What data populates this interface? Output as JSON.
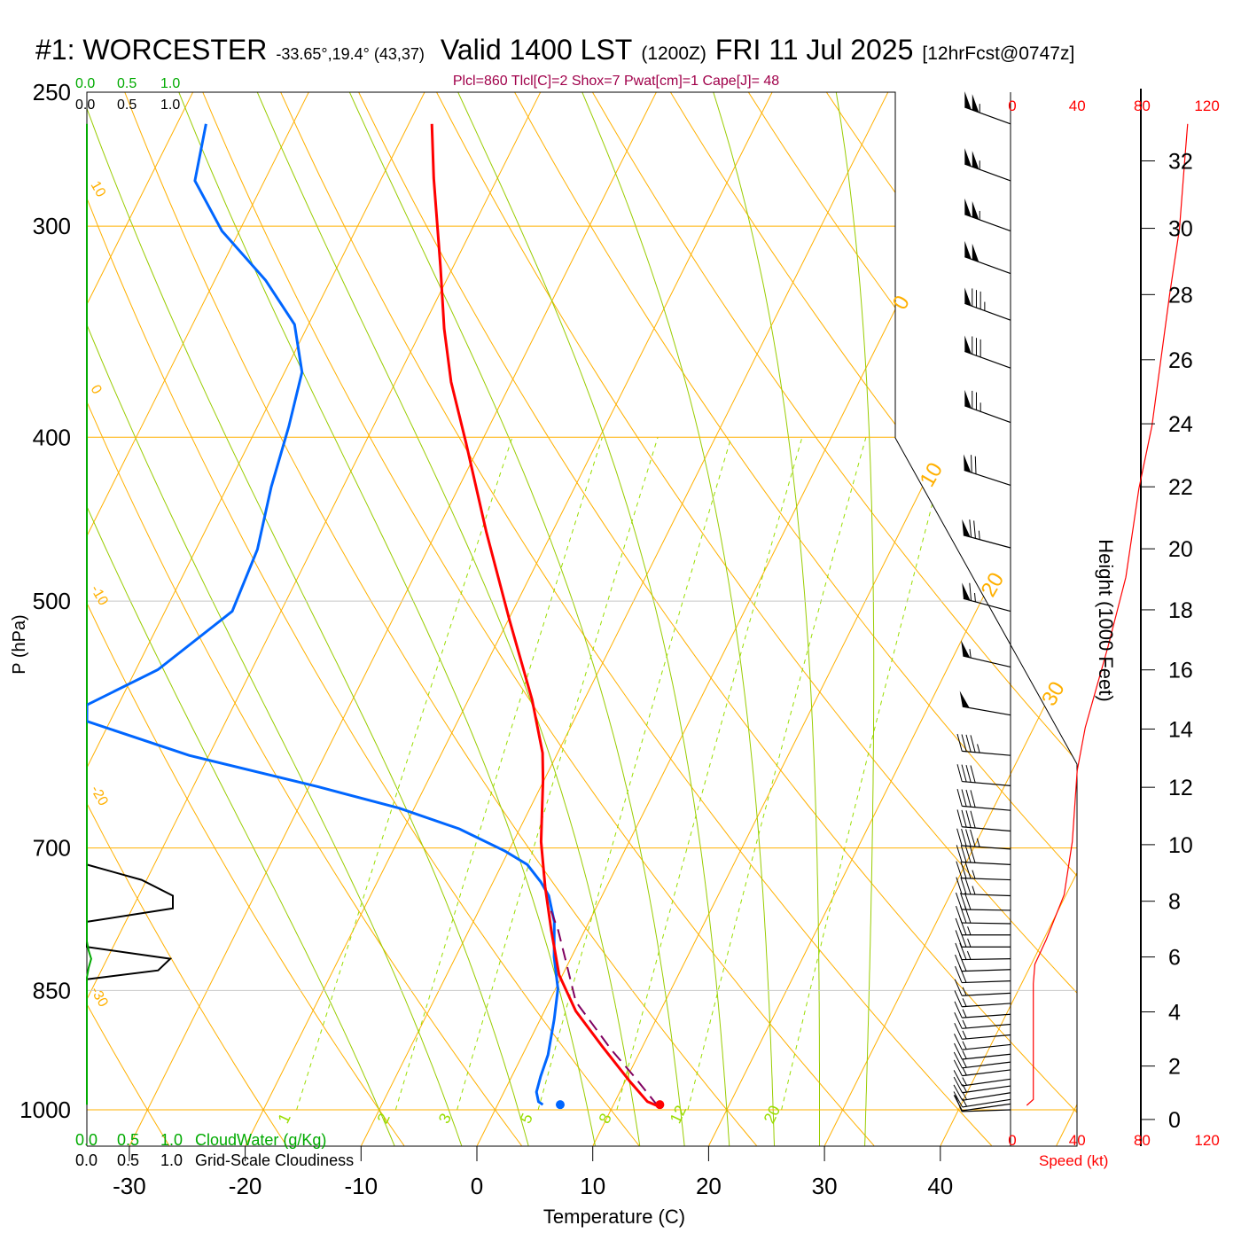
{
  "header": {
    "station": "#1: WORCESTER",
    "coords": "-33.65°,19.4° (43,37)",
    "valid": "Valid 1400 LST",
    "utc": "(1200Z)",
    "date": "FRI 11 Jul 2025",
    "forecast": "[12hrFcst@0747z]",
    "indices": "Plcl=860 Tlcl[C]=2 Shox=7 Pwat[cm]=1 Cape[J]= 48"
  },
  "colors": {
    "temperature": "#ff0000",
    "dewpoint": "#0066ff",
    "parcel": "#800060",
    "isotherm": "#ffb000",
    "moist_adiabat": "#99cc00",
    "mixing_ratio": "#99dd00",
    "cloudwater": "#00aa00",
    "speed": "#ff0000"
  },
  "cloud_scales": {
    "ticks": [
      "0.0",
      "0.5",
      "1.0"
    ],
    "cloudwater_label": "CloudWater (g/Kg)",
    "cloudiness_label": "Grid-Scale Cloudiness"
  },
  "chart_data": {
    "type": "skewt",
    "title": "#1: WORCESTER Valid 1400 LST (1200Z) FRI 11 Jul 2025",
    "xlabel": "Temperature (C)",
    "ylabel": "P (hPa)",
    "pressure_ticks": [
      250,
      300,
      400,
      500,
      700,
      850,
      1000
    ],
    "pressure_range": [
      250,
      1050
    ],
    "temperature_ticks": [
      -30,
      -20,
      -10,
      0,
      10,
      20,
      30,
      40
    ],
    "dry_adiabat_labels": [
      10,
      0,
      -10,
      -20,
      -30
    ],
    "isotherm_labels": [
      0,
      10,
      20,
      30
    ],
    "mixing_ratio_labels": [
      1,
      2,
      3,
      5,
      8,
      12,
      20
    ],
    "temperature": [
      [
        261,
        -48.0
      ],
      [
        281,
        -45.5
      ],
      [
        317,
        -41.1
      ],
      [
        345,
        -38.1
      ],
      [
        371,
        -35.2
      ],
      [
        403,
        -31.3
      ],
      [
        455,
        -25.7
      ],
      [
        513,
        -19.9
      ],
      [
        572,
        -14.5
      ],
      [
        615,
        -11.3
      ],
      [
        638,
        -10.1
      ],
      [
        694,
        -7.6
      ],
      [
        738,
        -5.3
      ],
      [
        783,
        -2.9
      ],
      [
        832,
        -0.3
      ],
      [
        874,
        2.7
      ],
      [
        917,
        6.5
      ],
      [
        962,
        10.4
      ],
      [
        989,
        12.8
      ],
      [
        995,
        13.9
      ]
    ],
    "dewpoint": [
      [
        261,
        -67.5
      ],
      [
        282,
        -66.0
      ],
      [
        302,
        -61.5
      ],
      [
        323,
        -55.6
      ],
      [
        343,
        -51.2
      ],
      [
        366,
        -48.5
      ],
      [
        394,
        -47.3
      ],
      [
        428,
        -46.2
      ],
      [
        466,
        -44.7
      ],
      [
        507,
        -44.2
      ],
      [
        549,
        -48.1
      ],
      [
        576,
        -52.7
      ],
      [
        589,
        -52.0
      ],
      [
        617,
        -41.7
      ],
      [
        644,
        -29.2
      ],
      [
        663,
        -21.3
      ],
      [
        682,
        -15.2
      ],
      [
        703,
        -10.3
      ],
      [
        716,
        -7.8
      ],
      [
        733,
        -5.9
      ],
      [
        747,
        -4.6
      ],
      [
        774,
        -3.0
      ],
      [
        812,
        -1.5
      ],
      [
        848,
        0.2
      ],
      [
        884,
        1.2
      ],
      [
        928,
        2.2
      ],
      [
        956,
        2.5
      ],
      [
        976,
        2.8
      ],
      [
        989,
        3.4
      ],
      [
        993,
        3.9
      ]
    ],
    "parcel": [
      [
        995,
        13.9
      ],
      [
        956,
        10.6
      ],
      [
        922,
        7.5
      ],
      [
        863,
        2.3
      ],
      [
        822,
        0.0
      ],
      [
        783,
        -2.3
      ],
      [
        762,
        -3.8
      ]
    ],
    "surface_temperature": {
      "p": 993,
      "T": 14.0
    },
    "surface_dewpoint": {
      "p": 993,
      "T": 5.4
    },
    "wind_barbs": [
      [
        261,
        290,
        105
      ],
      [
        282,
        290,
        105
      ],
      [
        302,
        290,
        105
      ],
      [
        320,
        290,
        100
      ],
      [
        341,
        290,
        85
      ],
      [
        364,
        290,
        80
      ],
      [
        392,
        290,
        75
      ],
      [
        427,
        288,
        70
      ],
      [
        465,
        285,
        75
      ],
      [
        507,
        285,
        65
      ],
      [
        547,
        283,
        55
      ],
      [
        584,
        280,
        50
      ],
      [
        617,
        275,
        45
      ],
      [
        643,
        275,
        40
      ],
      [
        665,
        275,
        40
      ],
      [
        684,
        275,
        40
      ],
      [
        701,
        274,
        45
      ],
      [
        716,
        273,
        40
      ],
      [
        731,
        272,
        35
      ],
      [
        747,
        272,
        35
      ],
      [
        762,
        271,
        30
      ],
      [
        776,
        271,
        30
      ],
      [
        788,
        270,
        25
      ],
      [
        801,
        270,
        25
      ],
      [
        814,
        269,
        25
      ],
      [
        826,
        268,
        20
      ],
      [
        839,
        268,
        20
      ],
      [
        853,
        267,
        15
      ],
      [
        865,
        266,
        15
      ],
      [
        878,
        266,
        15
      ],
      [
        890,
        265,
        15
      ],
      [
        903,
        265,
        15
      ],
      [
        915,
        264,
        15
      ],
      [
        927,
        264,
        15
      ],
      [
        937,
        263,
        15
      ],
      [
        947,
        263,
        15
      ],
      [
        959,
        262,
        15
      ],
      [
        968,
        262,
        15
      ],
      [
        977,
        261,
        15
      ],
      [
        986,
        261,
        15
      ],
      [
        992,
        262,
        10
      ],
      [
        1000,
        268,
        10
      ]
    ],
    "wind_speed_profile": [
      [
        261,
        109
      ],
      [
        276,
        107
      ],
      [
        301,
        104
      ],
      [
        329,
        98
      ],
      [
        394,
        87
      ],
      [
        429,
        79
      ],
      [
        484,
        71
      ],
      [
        532,
        60
      ],
      [
        594,
        46
      ],
      [
        630,
        41
      ],
      [
        694,
        38
      ],
      [
        746,
        33
      ],
      [
        793,
        22
      ],
      [
        820,
        15
      ],
      [
        842,
        14
      ],
      [
        986,
        14
      ],
      [
        994,
        10
      ]
    ],
    "speed_axis": {
      "label": "Speed (kt)",
      "ticks": [
        0,
        40,
        80,
        120
      ]
    },
    "height_axis": {
      "label": "Height (1000 Feet)",
      "ticks": [
        0,
        2,
        4,
        6,
        8,
        10,
        12,
        14,
        16,
        18,
        20,
        22,
        24,
        26,
        28,
        30,
        32
      ]
    },
    "cloudiness": [
      [
        716,
        0
      ],
      [
        731,
        0.63
      ],
      [
        747,
        0.99
      ],
      [
        760,
        0.99
      ],
      [
        774,
        0
      ],
      [
        801,
        0
      ],
      [
        814,
        0.96
      ],
      [
        827,
        0.82
      ],
      [
        837,
        0
      ]
    ],
    "cloudwater": [
      [
        261,
        0
      ],
      [
        795,
        0
      ],
      [
        805,
        0.02
      ],
      [
        814,
        0.05
      ],
      [
        824,
        0.02
      ],
      [
        835,
        0
      ],
      [
        993,
        0
      ]
    ]
  }
}
